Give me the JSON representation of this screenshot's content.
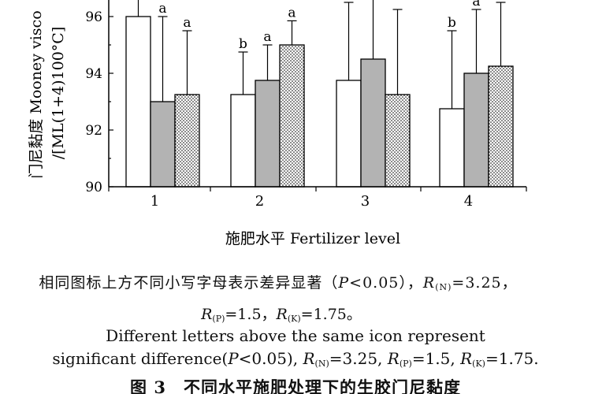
{
  "chart_data": {
    "type": "bar",
    "categories": [
      "1",
      "2",
      "3",
      "4"
    ],
    "series": [
      {
        "values": [
          96.0,
          93.25,
          93.75,
          92.75
        ],
        "error": [
          0.75,
          1.5,
          2.75,
          2.75
        ],
        "letters": [
          "",
          "b",
          "",
          "b"
        ],
        "pattern": "white"
      },
      {
        "values": [
          93.0,
          93.75,
          94.5,
          94.0
        ],
        "error": [
          3.0,
          1.25,
          2.75,
          2.25
        ],
        "letters": [
          "a",
          "a",
          "",
          "a"
        ],
        "pattern": "gray"
      },
      {
        "values": [
          93.25,
          95.0,
          93.25,
          94.25
        ],
        "error": [
          2.25,
          0.85,
          3.0,
          2.25
        ],
        "letters": [
          "a",
          "a",
          "",
          ""
        ],
        "pattern": "dots"
      }
    ],
    "xlabel": "施肥水平 Fertilizer level",
    "ylabel_zh": "门尼黏度 Mooney visco",
    "ylabel_en": "/[ML(1+4)100°C]",
    "yticks": [
      90,
      92,
      94,
      96
    ],
    "ylim": [
      90,
      97.2
    ]
  },
  "caption": {
    "zh_line1": {
      "a": "相同图标上方不同小写字母表示差异显著（",
      "p": "P",
      "b": "<0.05），",
      "r1": "R",
      "s1": "(N)",
      "v1": "=3.25，"
    },
    "zh_line2": {
      "r2": "R",
      "s2": "(P)",
      "v2": "=1.5，",
      "r3": "R",
      "s3": "(K)",
      "v3": "=1.75。"
    },
    "en_line1": "Different letters above the same icon represent",
    "en_line2": {
      "a": "significant difference(",
      "p": "P",
      "b": "<0.05), ",
      "r1": "R",
      "s1": "(N)",
      "v1": "=3.25, ",
      "r2": "R",
      "s2": "(P)",
      "v2": "=1.5, ",
      "r3": "R",
      "s3": "(K)",
      "v3": "=1.75."
    }
  },
  "figure_title": "图 3　不同水平施肥处理下的生胶门尼黏度"
}
